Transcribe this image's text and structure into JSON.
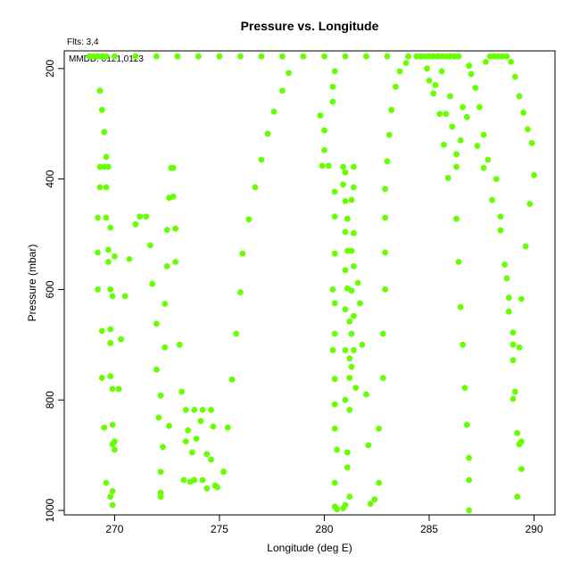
{
  "chart_data": {
    "type": "scatter",
    "title": "Pressure vs. Longitude",
    "subtitle": "Flts: 3,4",
    "annotation": "MMDD: 0121,0123",
    "xlabel": "Longitude (deg E)",
    "ylabel": "Pressure (mbar)",
    "xlim": [
      267.6,
      291.0
    ],
    "ylim": [
      1008,
      168
    ],
    "y_reversed": true,
    "xticks": [
      270,
      275,
      280,
      285,
      290
    ],
    "yticks": [
      200,
      400,
      600,
      800,
      1000
    ],
    "grid": false,
    "marker_color": "#66ff00",
    "series": [
      {
        "points": [
          [
            268.8,
            178
          ],
          [
            269.0,
            178
          ],
          [
            269.2,
            178
          ],
          [
            269.4,
            178
          ],
          [
            269.6,
            178
          ],
          [
            269.3,
            240
          ],
          [
            269.4,
            275
          ],
          [
            269.5,
            315
          ],
          [
            269.6,
            360
          ],
          [
            269.3,
            378
          ],
          [
            269.5,
            378
          ],
          [
            269.7,
            378
          ],
          [
            269.3,
            415
          ],
          [
            269.6,
            415
          ],
          [
            269.2,
            470
          ],
          [
            269.6,
            470
          ],
          [
            269.8,
            488
          ],
          [
            269.7,
            528
          ],
          [
            269.2,
            533
          ],
          [
            269.7,
            550
          ],
          [
            269.2,
            600
          ],
          [
            269.8,
            600
          ],
          [
            269.9,
            612
          ],
          [
            269.4,
            675
          ],
          [
            269.8,
            672
          ],
          [
            269.8,
            697
          ],
          [
            269.4,
            760
          ],
          [
            269.8,
            757
          ],
          [
            269.9,
            780
          ],
          [
            269.5,
            850
          ],
          [
            269.9,
            845
          ],
          [
            270.0,
            875
          ],
          [
            269.9,
            880
          ],
          [
            270.0,
            890
          ],
          [
            269.6,
            950
          ],
          [
            269.8,
            975
          ],
          [
            269.9,
            965
          ],
          [
            269.9,
            990
          ],
          [
            270.0,
            540
          ],
          [
            270.3,
            690
          ],
          [
            270.2,
            780
          ],
          [
            270.5,
            612
          ],
          [
            270.7,
            545
          ],
          [
            271.0,
            482
          ],
          [
            271.2,
            468
          ],
          [
            271.5,
            468
          ],
          [
            271.7,
            520
          ],
          [
            271.8,
            590
          ],
          [
            272.0,
            662
          ],
          [
            272.0,
            745
          ],
          [
            272.1,
            832
          ],
          [
            272.2,
            930
          ],
          [
            272.2,
            968
          ],
          [
            272.2,
            975
          ],
          [
            272.2,
            792
          ],
          [
            272.3,
            885
          ],
          [
            272.4,
            626
          ],
          [
            272.4,
            705
          ],
          [
            272.5,
            558
          ],
          [
            272.5,
            492
          ],
          [
            272.6,
            434
          ],
          [
            272.6,
            847
          ],
          [
            272.7,
            380
          ],
          [
            272.8,
            380
          ],
          [
            272.8,
            432
          ],
          [
            272.9,
            490
          ],
          [
            272.9,
            550
          ],
          [
            273.1,
            700
          ],
          [
            273.2,
            785
          ],
          [
            273.3,
            945
          ],
          [
            273.4,
            818
          ],
          [
            273.4,
            875
          ],
          [
            273.5,
            855
          ],
          [
            273.6,
            948
          ],
          [
            273.7,
            895
          ],
          [
            273.8,
            945
          ],
          [
            273.8,
            818
          ],
          [
            273.9,
            870
          ],
          [
            274.1,
            838
          ],
          [
            274.2,
            945
          ],
          [
            274.2,
            818
          ],
          [
            274.4,
            898
          ],
          [
            274.4,
            960
          ],
          [
            274.6,
            908
          ],
          [
            274.6,
            818
          ],
          [
            274.7,
            848
          ],
          [
            274.8,
            955
          ],
          [
            274.9,
            958
          ],
          [
            275.2,
            930
          ],
          [
            275.4,
            850
          ],
          [
            275.6,
            763
          ],
          [
            275.8,
            680
          ],
          [
            276.0,
            605
          ],
          [
            276.1,
            535
          ],
          [
            276.4,
            473
          ],
          [
            276.7,
            415
          ],
          [
            277.0,
            365
          ],
          [
            277.3,
            318
          ],
          [
            277.6,
            278
          ],
          [
            278.0,
            240
          ],
          [
            278.3,
            208
          ],
          [
            270,
            178
          ],
          [
            271,
            178
          ],
          [
            272,
            178
          ],
          [
            273,
            178
          ],
          [
            274,
            178
          ],
          [
            275,
            178
          ],
          [
            276,
            178
          ],
          [
            277,
            178
          ],
          [
            278,
            178
          ],
          [
            279,
            178
          ],
          [
            280,
            178
          ],
          [
            281,
            178
          ],
          [
            282,
            178
          ],
          [
            283,
            178
          ],
          [
            284,
            178
          ],
          [
            285,
            178
          ],
          [
            286,
            178
          ],
          [
            279.8,
            285
          ],
          [
            280.0,
            312
          ],
          [
            280.0,
            348
          ],
          [
            279.9,
            376
          ],
          [
            280.2,
            376
          ],
          [
            280.4,
            233
          ],
          [
            280.5,
            205
          ],
          [
            280.4,
            260
          ],
          [
            280.5,
            423
          ],
          [
            280.5,
            468
          ],
          [
            280.5,
            535
          ],
          [
            280.4,
            600
          ],
          [
            280.5,
            625
          ],
          [
            280.5,
            680
          ],
          [
            280.4,
            710
          ],
          [
            280.5,
            762
          ],
          [
            280.5,
            808
          ],
          [
            280.5,
            852
          ],
          [
            280.6,
            890
          ],
          [
            280.5,
            950
          ],
          [
            280.5,
            993
          ],
          [
            280.6,
            998
          ],
          [
            280.9,
            378
          ],
          [
            281.0,
            388
          ],
          [
            280.9,
            410
          ],
          [
            281.0,
            440
          ],
          [
            281.1,
            472
          ],
          [
            281.0,
            496
          ],
          [
            281.1,
            530
          ],
          [
            281.0,
            565
          ],
          [
            281.1,
            598
          ],
          [
            281.0,
            636
          ],
          [
            281.2,
            658
          ],
          [
            281.0,
            710
          ],
          [
            281.2,
            725
          ],
          [
            281.0,
            800
          ],
          [
            281.2,
            818
          ],
          [
            281.1,
            895
          ],
          [
            281.1,
            922
          ],
          [
            280.9,
            996
          ],
          [
            281.0,
            990
          ],
          [
            281.2,
            975
          ],
          [
            281.4,
            378
          ],
          [
            281.4,
            415
          ],
          [
            281.3,
            438
          ],
          [
            281.4,
            498
          ],
          [
            281.3,
            530
          ],
          [
            281.4,
            558
          ],
          [
            281.3,
            602
          ],
          [
            281.4,
            648
          ],
          [
            281.3,
            680
          ],
          [
            281.4,
            710
          ],
          [
            281.3,
            740
          ],
          [
            281.2,
            760
          ],
          [
            281.5,
            778
          ],
          [
            281.6,
            588
          ],
          [
            281.7,
            625
          ],
          [
            281.8,
            700
          ],
          [
            282.0,
            790
          ],
          [
            282.1,
            882
          ],
          [
            282.2,
            988
          ],
          [
            282.4,
            980
          ],
          [
            282.6,
            950
          ],
          [
            282.6,
            852
          ],
          [
            282.8,
            760
          ],
          [
            282.8,
            680
          ],
          [
            282.9,
            600
          ],
          [
            282.9,
            533
          ],
          [
            282.9,
            470
          ],
          [
            282.9,
            418
          ],
          [
            283.0,
            368
          ],
          [
            283.1,
            320
          ],
          [
            283.2,
            275
          ],
          [
            283.4,
            233
          ],
          [
            283.6,
            205
          ],
          [
            283.9,
            190
          ],
          [
            284.4,
            178
          ],
          [
            284.6,
            178
          ],
          [
            284.8,
            178
          ],
          [
            285.0,
            178
          ],
          [
            285.2,
            178
          ],
          [
            285.4,
            178
          ],
          [
            285.6,
            178
          ],
          [
            285.8,
            178
          ],
          [
            286.0,
            178
          ],
          [
            286.2,
            178
          ],
          [
            286.4,
            178
          ],
          [
            284.9,
            200
          ],
          [
            285.0,
            222
          ],
          [
            285.2,
            245
          ],
          [
            285.3,
            230
          ],
          [
            285.5,
            282
          ],
          [
            285.7,
            338
          ],
          [
            285.8,
            282
          ],
          [
            285.6,
            205
          ],
          [
            285.9,
            398
          ],
          [
            286.0,
            250
          ],
          [
            286.1,
            305
          ],
          [
            286.3,
            355
          ],
          [
            286.3,
            472
          ],
          [
            286.4,
            550
          ],
          [
            286.5,
            632
          ],
          [
            286.6,
            700
          ],
          [
            286.7,
            778
          ],
          [
            286.8,
            845
          ],
          [
            286.9,
            905
          ],
          [
            286.9,
            945
          ],
          [
            286.9,
            1000
          ],
          [
            286.3,
            378
          ],
          [
            286.5,
            330
          ],
          [
            286.6,
            270
          ],
          [
            286.8,
            288
          ],
          [
            286.9,
            195
          ],
          [
            287.0,
            210
          ],
          [
            287.2,
            235
          ],
          [
            287.4,
            270
          ],
          [
            287.6,
            320
          ],
          [
            287.8,
            365
          ],
          [
            287.3,
            340
          ],
          [
            287.6,
            380
          ],
          [
            287.7,
            188
          ],
          [
            287.9,
            178
          ],
          [
            288.1,
            178
          ],
          [
            288.3,
            178
          ],
          [
            288.5,
            178
          ],
          [
            288.7,
            178
          ],
          [
            288.9,
            188
          ],
          [
            289.1,
            215
          ],
          [
            289.3,
            250
          ],
          [
            289.5,
            280
          ],
          [
            289.7,
            310
          ],
          [
            289.9,
            335
          ],
          [
            290.0,
            393
          ],
          [
            289.8,
            445
          ],
          [
            289.6,
            522
          ],
          [
            289.4,
            617
          ],
          [
            289.3,
            705
          ],
          [
            289.1,
            785
          ],
          [
            289.0,
            798
          ],
          [
            289.2,
            860
          ],
          [
            289.4,
            875
          ],
          [
            289.3,
            880
          ],
          [
            289.4,
            925
          ],
          [
            289.2,
            975
          ],
          [
            288.0,
            438
          ],
          [
            288.2,
            400
          ],
          [
            288.4,
            468
          ],
          [
            288.4,
            493
          ],
          [
            288.6,
            555
          ],
          [
            288.7,
            580
          ],
          [
            288.8,
            615
          ],
          [
            288.8,
            640
          ],
          [
            289.0,
            678
          ],
          [
            289.0,
            700
          ],
          [
            289.0,
            728
          ]
        ]
      }
    ]
  }
}
